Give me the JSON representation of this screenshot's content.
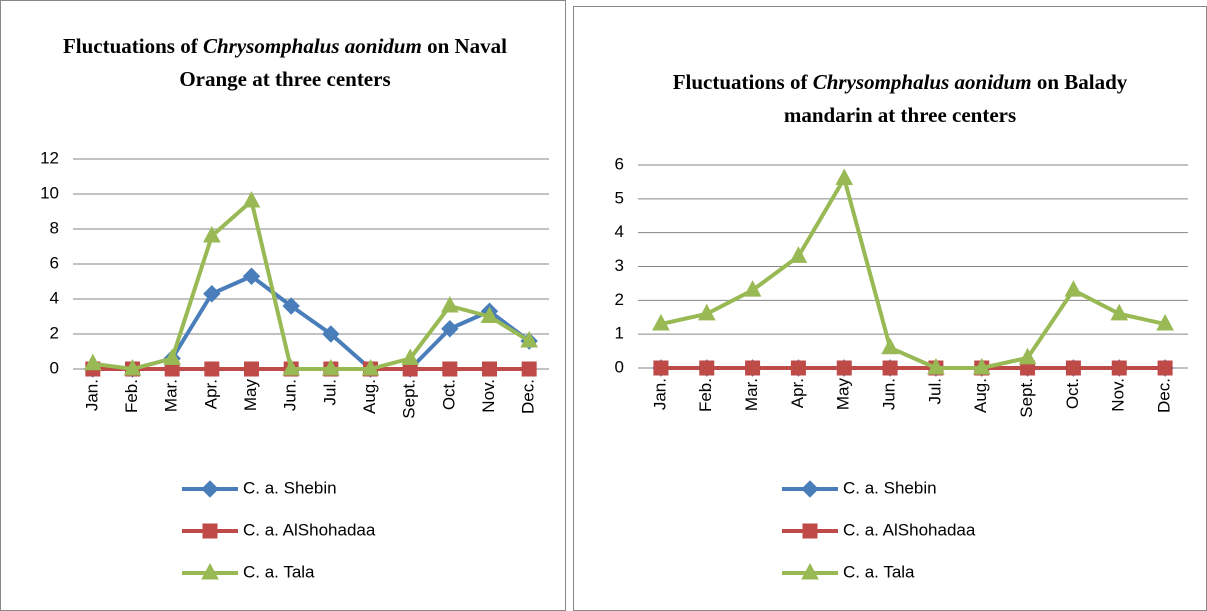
{
  "chart_data": [
    {
      "type": "line",
      "title": [
        "Fluctuations of",
        "Chrysomphalus aonidum",
        "on Naval Orange at three centers"
      ],
      "categories": [
        "Jan.",
        "Feb.",
        "Mar.",
        "Apr.",
        "May",
        "Jun.",
        "Jul.",
        "Aug.",
        "Sept.",
        "Oct.",
        "Nov.",
        "Dec."
      ],
      "ylim": [
        0,
        12
      ],
      "yticks": [
        0,
        2,
        4,
        6,
        8,
        10,
        12
      ],
      "grid": true,
      "series": [
        {
          "name": "C. a. Shebin",
          "color": "#4a7ebb",
          "marker": "diamond",
          "values": [
            0,
            0,
            0.6,
            4.3,
            5.3,
            3.6,
            2.0,
            0,
            0,
            2.3,
            3.3,
            1.6
          ]
        },
        {
          "name": "C. a. AlShohadaa",
          "color": "#be4b48",
          "marker": "square",
          "values": [
            0,
            0,
            0,
            0,
            0,
            0,
            0,
            0,
            0,
            0,
            0,
            0
          ]
        },
        {
          "name": "C. a. Tala",
          "color": "#98b954",
          "marker": "triangle",
          "values": [
            0.3,
            0,
            0.6,
            7.6,
            9.6,
            0,
            0,
            0,
            0.6,
            3.6,
            3.0,
            1.6
          ]
        }
      ]
    },
    {
      "type": "line",
      "title": [
        "Fluctuations of",
        "Chrysomphalus aonidum",
        "on Balady mandarin at three centers"
      ],
      "categories": [
        "Jan.",
        "Feb.",
        "Mar.",
        "Apr.",
        "May",
        "Jun.",
        "Jul.",
        "Aug.",
        "Sept.",
        "Oct.",
        "Nov.",
        "Dec."
      ],
      "ylim": [
        0,
        6
      ],
      "yticks": [
        0,
        1,
        2,
        3,
        4,
        5,
        6
      ],
      "grid": true,
      "series": [
        {
          "name": "C. a. Shebin",
          "color": "#4a7ebb",
          "marker": "diamond",
          "values": [
            0,
            0,
            0,
            0,
            0,
            0,
            0,
            0,
            0,
            0,
            0,
            0
          ]
        },
        {
          "name": "C. a. AlShohadaa",
          "color": "#be4b48",
          "marker": "square",
          "values": [
            0,
            0,
            0,
            0,
            0,
            0,
            0,
            0,
            0,
            0,
            0,
            0
          ]
        },
        {
          "name": "C. a. Tala",
          "color": "#98b954",
          "marker": "triangle",
          "values": [
            1.3,
            1.6,
            2.3,
            3.3,
            5.6,
            0.6,
            0,
            0,
            0.3,
            2.3,
            1.6,
            1.3
          ]
        }
      ]
    }
  ]
}
